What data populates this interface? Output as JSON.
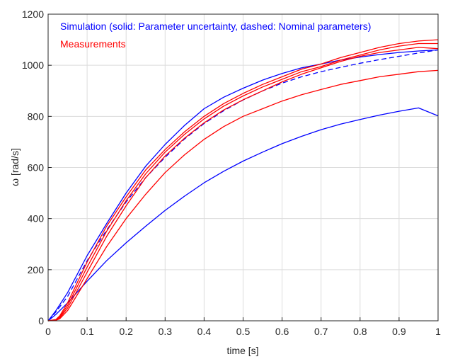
{
  "chart_data": {
    "type": "line",
    "title": "",
    "xlabel": "time [s]",
    "ylabel": "ω [rad/s]",
    "xlim": [
      0,
      1
    ],
    "ylim": [
      0,
      1200
    ],
    "x_ticks": [
      0,
      0.1,
      0.2,
      0.3,
      0.4,
      0.5,
      0.6,
      0.7,
      0.8,
      0.9,
      1
    ],
    "x_tick_labels": [
      "0",
      "0.1",
      "0.2",
      "0.3",
      "0.4",
      "0.5",
      "0.6",
      "0.7",
      "0.8",
      "0.9",
      "1"
    ],
    "y_ticks": [
      0,
      200,
      400,
      600,
      800,
      1000,
      1200
    ],
    "y_tick_labels": [
      "0",
      "200",
      "400",
      "600",
      "800",
      "1000",
      "1200"
    ],
    "grid": true,
    "legend_placement": "top-left",
    "legend": [
      {
        "text": "Simulation (solid: Parameter uncertainty, dashed: Nominal parameters)",
        "color": "#0000ff"
      },
      {
        "text": "Measurements",
        "color": "#ff0000"
      }
    ],
    "colors": {
      "simulation": "#0000ff",
      "measurement": "#ff0000"
    },
    "series": [
      {
        "group": "simulation",
        "style": "solid",
        "color": "#0000ff",
        "x": [
          0,
          0.02,
          0.05,
          0.1,
          0.15,
          0.2,
          0.25,
          0.3,
          0.35,
          0.4,
          0.45,
          0.5,
          0.55,
          0.6,
          0.65,
          0.7,
          0.75,
          0.8,
          0.85,
          0.9,
          0.95,
          1.0
        ],
        "y": [
          0,
          40,
          110,
          255,
          380,
          500,
          605,
          690,
          765,
          830,
          875,
          910,
          942,
          968,
          990,
          1005,
          1020,
          1032,
          1042,
          1050,
          1056,
          1060
        ]
      },
      {
        "group": "simulation",
        "style": "solid",
        "color": "#0000ff",
        "x": [
          0,
          0.02,
          0.05,
          0.1,
          0.15,
          0.2,
          0.25,
          0.3,
          0.35,
          0.4,
          0.45,
          0.5,
          0.55,
          0.6,
          0.65,
          0.7,
          0.75,
          0.8,
          0.85,
          0.9,
          0.95,
          1.0
        ],
        "y": [
          0,
          25,
          70,
          155,
          235,
          305,
          370,
          432,
          488,
          540,
          585,
          625,
          660,
          693,
          722,
          748,
          770,
          788,
          805,
          820,
          833,
          802
        ]
      },
      {
        "group": "simulation",
        "style": "dashed",
        "color": "#0000ff",
        "x": [
          0,
          0.02,
          0.05,
          0.1,
          0.15,
          0.2,
          0.25,
          0.3,
          0.35,
          0.4,
          0.45,
          0.5,
          0.55,
          0.6,
          0.65,
          0.7,
          0.75,
          0.8,
          0.85,
          0.9,
          0.95,
          1.0
        ],
        "y": [
          0,
          35,
          95,
          235,
          355,
          465,
          560,
          640,
          712,
          772,
          822,
          864,
          900,
          930,
          955,
          975,
          992,
          1008,
          1022,
          1035,
          1048,
          1060
        ]
      },
      {
        "group": "measurement",
        "style": "solid",
        "color": "#ff0000",
        "x": [
          0,
          0.02,
          0.03,
          0.05,
          0.1,
          0.15,
          0.2,
          0.25,
          0.3,
          0.35,
          0.4,
          0.45,
          0.5,
          0.55,
          0.6,
          0.65,
          0.7,
          0.75,
          0.8,
          0.85,
          0.9,
          0.95,
          1.0
        ],
        "y": [
          0,
          5,
          20,
          70,
          230,
          370,
          485,
          590,
          670,
          740,
          800,
          850,
          890,
          925,
          955,
          985,
          1005,
          1030,
          1050,
          1070,
          1085,
          1095,
          1100
        ]
      },
      {
        "group": "measurement",
        "style": "solid",
        "color": "#ff0000",
        "x": [
          0,
          0.02,
          0.03,
          0.05,
          0.1,
          0.15,
          0.2,
          0.25,
          0.3,
          0.35,
          0.4,
          0.45,
          0.5,
          0.55,
          0.6,
          0.65,
          0.7,
          0.75,
          0.8,
          0.85,
          0.9,
          0.95,
          1.0
        ],
        "y": [
          0,
          4,
          15,
          60,
          210,
          350,
          470,
          575,
          660,
          730,
          790,
          840,
          880,
          915,
          945,
          975,
          995,
          1020,
          1040,
          1060,
          1075,
          1085,
          1085
        ]
      },
      {
        "group": "measurement",
        "style": "solid",
        "color": "#ff0000",
        "x": [
          0,
          0.02,
          0.03,
          0.05,
          0.1,
          0.15,
          0.2,
          0.25,
          0.3,
          0.35,
          0.4,
          0.45,
          0.5,
          0.55,
          0.6,
          0.65,
          0.7,
          0.75,
          0.8,
          0.85,
          0.9,
          0.95,
          1.0
        ],
        "y": [
          0,
          3,
          12,
          50,
          190,
          330,
          450,
          560,
          645,
          715,
          775,
          825,
          865,
          900,
          935,
          965,
          990,
          1015,
          1035,
          1050,
          1060,
          1070,
          1065
        ]
      },
      {
        "group": "measurement",
        "style": "solid",
        "color": "#ff0000",
        "x": [
          0,
          0.02,
          0.03,
          0.05,
          0.1,
          0.15,
          0.2,
          0.25,
          0.3,
          0.35,
          0.4,
          0.45,
          0.5,
          0.55,
          0.6,
          0.65,
          0.7,
          0.75,
          0.8,
          0.85,
          0.9,
          0.95,
          1.0
        ],
        "y": [
          0,
          2,
          8,
          40,
          165,
          290,
          400,
          495,
          580,
          650,
          710,
          760,
          800,
          830,
          860,
          885,
          905,
          925,
          940,
          955,
          965,
          975,
          980
        ]
      }
    ]
  }
}
